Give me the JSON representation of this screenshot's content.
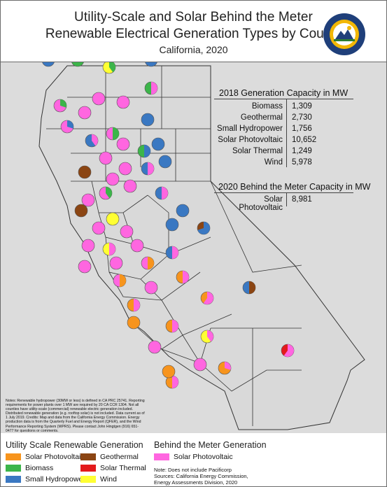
{
  "title": {
    "line1": "Utility-Scale and Solar Behind the Meter",
    "line2": "Renewable Electrical Generation Types by County",
    "line3": "California, 2020"
  },
  "seal": {
    "top_text": "STATE OF CALIFORNIA",
    "bottom_text": "ENERGY COMMISSION",
    "icon": "state-seal-icon"
  },
  "capacity_2018": {
    "heading": "2018 Generation Capacity in MW",
    "rows": [
      {
        "label": "Biomass",
        "value": "1,309"
      },
      {
        "label": "Geothermal",
        "value": "2,730"
      },
      {
        "label": "Small Hydropower",
        "value": "1,756"
      },
      {
        "label": "Solar Photovoltaic",
        "value": "10,652"
      },
      {
        "label": "Solar Thermal",
        "value": "1,249"
      },
      {
        "label": "Wind",
        "value": "5,978"
      }
    ]
  },
  "capacity_btm": {
    "heading": "2020 Behind the Meter Capacity in MW",
    "rows": [
      {
        "label": "Solar Photovoltaic",
        "value": "8,981"
      }
    ]
  },
  "notes": "Notes: Renewable hydropower (30MW or less) is defined in CA PRC 25741. Reporting requirements for power plants over 1 MW are required by 20 CA CCR 1304. Not all counties have utility-scale (commercial) renewable electric generation included. Distributed renewable generation (e.g. rooftop solar) is not included. Data current as of 1 July 2019. Credits: Map and data from the California Energy Commission. Energy production data is from the Quarterly Fuel and Energy Report (QFER), and the Wind Performance Reporting System (WPRS). Please contact John Hingtgen (916) 651-0477 for questions or comments.",
  "legend": {
    "utility_heading": "Utility Scale Renewable Generation",
    "items": [
      {
        "label": "Solar Photovoltaic",
        "color": "#f7941d"
      },
      {
        "label": "Geothermal",
        "color": "#8b4513"
      },
      {
        "label": "Biomass",
        "color": "#3cb54a"
      },
      {
        "label": "Solar Thermal",
        "color": "#e31a1c"
      },
      {
        "label": "Small Hydropower",
        "color": "#3a78c2"
      },
      {
        "label": "Wind",
        "color": "#ffff33"
      }
    ],
    "btm_heading": "Behind the Meter Generation",
    "btm_item": {
      "label": "Solar Photovoltaic",
      "color": "#ff66e0"
    },
    "note1": "Note: Does not include Pacificorp",
    "note2": "Sources: California Energy Commission,",
    "note3": "Energy Assessments Division, 2020"
  }
}
